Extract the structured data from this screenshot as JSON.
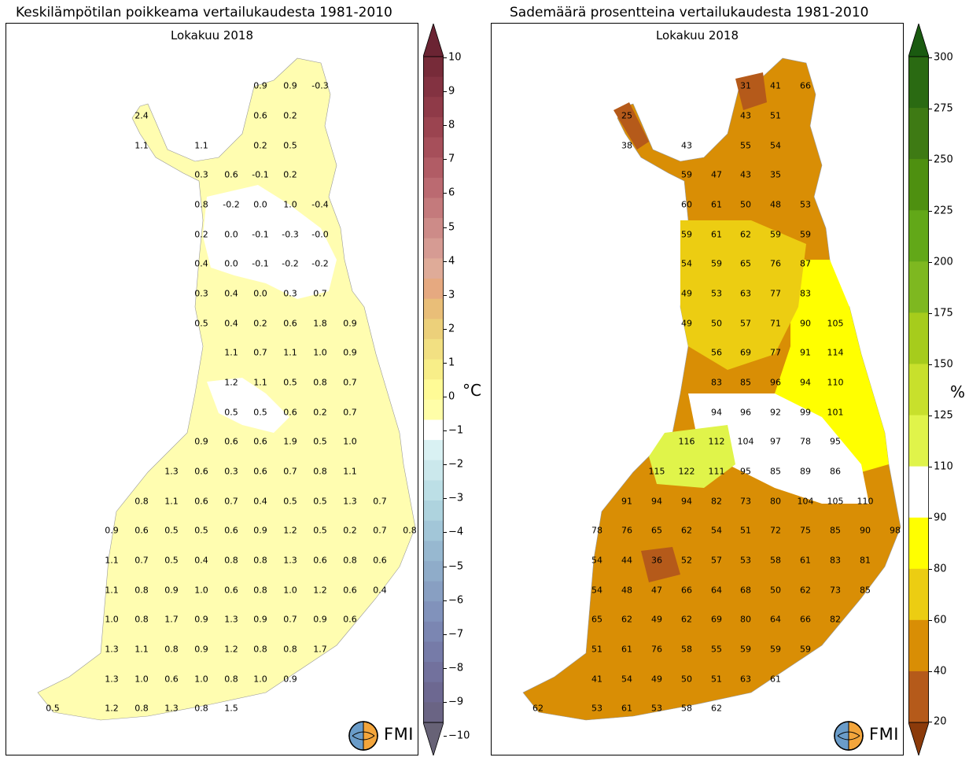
{
  "left": {
    "title": "Keskilämpötilan poikkeama vertailukaudesta 1981-2010",
    "subtitle": "Lokakuu 2018",
    "unit": "°C",
    "ticks": [
      "10",
      "9",
      "8",
      "7",
      "6",
      "5",
      "4",
      "3",
      "2",
      "1",
      "0",
      "−1",
      "−2",
      "−3",
      "−4",
      "−5",
      "−6",
      "−7",
      "−8",
      "−9",
      "−10"
    ],
    "values": [
      "0.9",
      "0.9",
      "-0.3",
      "2.4",
      "0.6",
      "0.2",
      "1.1",
      "1.1",
      "0.2",
      "0.5",
      "0.3",
      "0.6",
      "-0.1",
      "0.2",
      "0.8",
      "-0.2",
      "0.0",
      "1.0",
      "-0.4",
      "0.2",
      "0.0",
      "-0.1",
      "-0.3",
      "-0.0",
      "0.4",
      "0.0",
      "-0.1",
      "-0.2",
      "-0.2",
      "0.3",
      "0.4",
      "0.0",
      "0.3",
      "0.7",
      "0.5",
      "0.4",
      "0.2",
      "0.6",
      "1.8",
      "0.9",
      "1.1",
      "0.7",
      "1.1",
      "1.0",
      "0.9",
      "1.2",
      "1.1",
      "0.5",
      "0.8",
      "0.7",
      "0.5",
      "0.5",
      "0.6",
      "0.2",
      "0.7",
      "0.9",
      "0.6",
      "0.6",
      "1.9",
      "0.5",
      "1.0",
      "1.3",
      "0.6",
      "0.3",
      "0.6",
      "0.7",
      "0.8",
      "1.1",
      "0.8",
      "1.1",
      "0.6",
      "0.7",
      "0.4",
      "0.5",
      "0.5",
      "1.3",
      "0.7",
      "0.9",
      "0.6",
      "0.5",
      "0.5",
      "0.6",
      "0.9",
      "1.2",
      "0.5",
      "0.2",
      "0.7",
      "0.8",
      "1.1",
      "0.7",
      "0.5",
      "0.4",
      "0.8",
      "0.8",
      "1.3",
      "0.6",
      "0.8",
      "0.6",
      "1.1",
      "0.8",
      "0.9",
      "1.0",
      "0.6",
      "0.8",
      "1.0",
      "1.2",
      "0.6",
      "0.4",
      "1.0",
      "0.8",
      "1.7",
      "0.9",
      "1.3",
      "0.9",
      "0.7",
      "0.9",
      "0.6",
      "1.3",
      "1.1",
      "0.8",
      "0.9",
      "1.2",
      "0.8",
      "0.8",
      "1.7",
      "1.3",
      "1.0",
      "0.6",
      "1.0",
      "0.8",
      "1.0",
      "0.9",
      "0.5",
      "1.2",
      "0.8",
      "1.3",
      "0.8",
      "1.5"
    ],
    "colors": [
      "#6b2433",
      "#772b39",
      "#833241",
      "#8f3a48",
      "#9b4450",
      "#a64f5a",
      "#b15c65",
      "#bb6a71",
      "#c47a7c",
      "#cd8b88",
      "#d69b93",
      "#dfab98",
      "#e6a980",
      "#e9be78",
      "#ecd07a",
      "#f2e082",
      "#f8ee88",
      "#fffb96",
      "#fffea8",
      "#ffffff",
      "#d9f1f3",
      "#cbe8ec",
      "#bcdfe6",
      "#aed3de",
      "#a2c6d8",
      "#97b8d0",
      "#8facc9",
      "#889fc2",
      "#8192bb",
      "#7b86b2",
      "#767ba8",
      "#72719d",
      "#6d6891",
      "#6a6484",
      "#676276"
    ],
    "logo": "FMI"
  },
  "right": {
    "title": "Sademäärä prosentteina vertailukaudesta 1981-2010",
    "subtitle": "Lokakuu 2018",
    "unit": "%",
    "ticks": [
      "300",
      "275",
      "250",
      "225",
      "200",
      "175",
      "150",
      "125",
      "110",
      "90",
      "80",
      "60",
      "40",
      "20"
    ],
    "values": [
      "31",
      "41",
      "66",
      "25",
      "43",
      "51",
      "38",
      "43",
      "55",
      "54",
      "59",
      "47",
      "43",
      "35",
      "60",
      "61",
      "50",
      "48",
      "53",
      "59",
      "61",
      "62",
      "59",
      "59",
      "54",
      "59",
      "65",
      "76",
      "87",
      "49",
      "53",
      "63",
      "77",
      "83",
      "49",
      "50",
      "57",
      "71",
      "90",
      "105",
      "56",
      "69",
      "77",
      "91",
      "114",
      "83",
      "85",
      "96",
      "94",
      "110",
      "94",
      "96",
      "92",
      "99",
      "101",
      "116",
      "112",
      "104",
      "97",
      "78",
      "95",
      "115",
      "122",
      "111",
      "95",
      "85",
      "89",
      "86",
      "91",
      "94",
      "94",
      "82",
      "73",
      "80",
      "104",
      "105",
      "110",
      "78",
      "76",
      "65",
      "62",
      "54",
      "51",
      "72",
      "75",
      "85",
      "90",
      "98",
      "54",
      "44",
      "36",
      "52",
      "57",
      "53",
      "58",
      "61",
      "83",
      "81",
      "54",
      "48",
      "47",
      "66",
      "64",
      "68",
      "50",
      "62",
      "73",
      "85",
      "65",
      "62",
      "49",
      "62",
      "69",
      "80",
      "64",
      "66",
      "82",
      "51",
      "61",
      "76",
      "58",
      "55",
      "59",
      "59",
      "59",
      "41",
      "54",
      "49",
      "50",
      "51",
      "63",
      "61",
      "62",
      "53",
      "61",
      "53",
      "58",
      "62"
    ],
    "colors": [
      "#1a5a10",
      "#2a6a12",
      "#3e7a14",
      "#4e9010",
      "#62a818",
      "#7eb820",
      "#a6cc1c",
      "#c8e02c",
      "#e0f44a",
      "#ffffff",
      "#ffff00",
      "#eccd12",
      "#d98e05",
      "#b55a1a",
      "#8b3a0a"
    ],
    "logo": "FMI"
  }
}
